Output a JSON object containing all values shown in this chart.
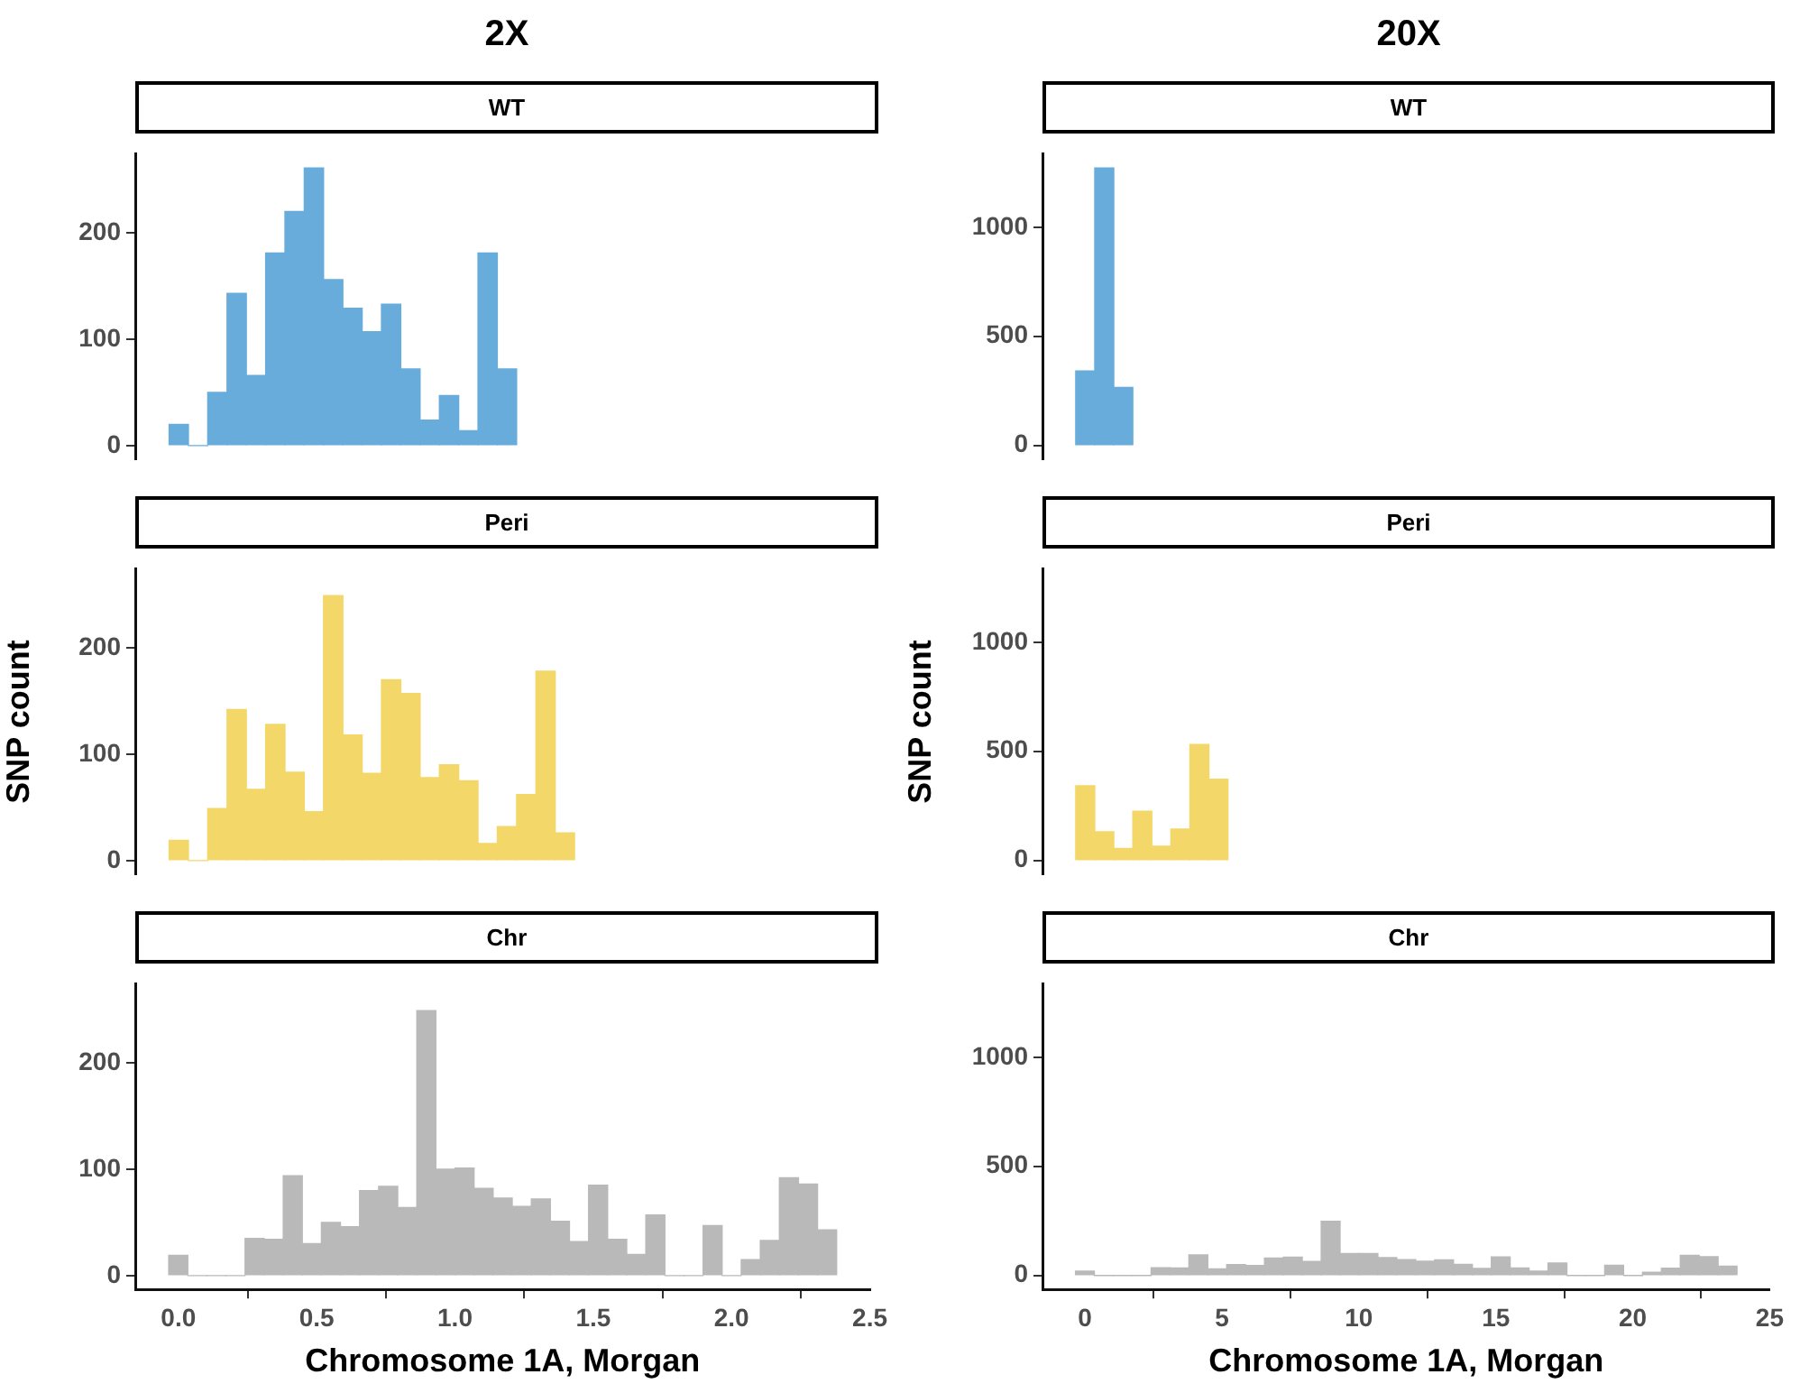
{
  "chart_data": [
    {
      "type": "histogram",
      "title": "2X",
      "subtitle": "WT",
      "color": "#68acdc",
      "bins": [
        -0.035,
        0.034,
        0.103,
        0.172,
        0.241,
        0.31,
        0.379,
        0.448,
        0.517,
        0.586,
        0.655,
        0.724,
        0.793,
        0.862,
        0.931,
        1.0,
        1.069,
        1.138,
        1.207
      ],
      "values": [
        20,
        0,
        50,
        143,
        66,
        181,
        220,
        261,
        156,
        129,
        107,
        133,
        72,
        24,
        47,
        14,
        181,
        72
      ],
      "xlim": [
        -0.156,
        2.5
      ],
      "ylim": [
        -13,
        274
      ],
      "yticks": [
        0,
        100,
        200
      ],
      "tick_labels": "y"
    },
    {
      "type": "histogram",
      "title": "20X",
      "subtitle": "WT",
      "color": "#68acdc",
      "bins": [
        -0.345,
        0.345,
        1.035,
        1.725
      ],
      "values": [
        341,
        1271,
        266
      ],
      "xlim": [
        -1.55,
        25
      ],
      "ylim": [
        -64,
        1335
      ],
      "yticks": [
        0,
        500,
        1000
      ],
      "tick_labels": "y"
    },
    {
      "type": "histogram",
      "subtitle": "Peri",
      "ylabel": "SNP count",
      "color": "#f3d768",
      "bins": [
        -0.035,
        0.034,
        0.103,
        0.172,
        0.241,
        0.31,
        0.379,
        0.448,
        0.517,
        0.586,
        0.655,
        0.724,
        0.793,
        0.862,
        0.931,
        1.0,
        1.069,
        1.138,
        1.207,
        1.276,
        1.345,
        1.414
      ],
      "values": [
        19,
        0,
        49,
        142,
        67,
        128,
        83,
        46,
        249,
        118,
        82,
        170,
        157,
        78,
        90,
        75,
        16,
        32,
        62,
        178,
        26
      ],
      "xlim": [
        -0.156,
        2.5
      ],
      "ylim": [
        -13,
        274
      ],
      "yticks": [
        0,
        100,
        200
      ],
      "tick_labels": "y"
    },
    {
      "type": "histogram",
      "subtitle": "Peri",
      "ylabel": "SNP count",
      "color": "#f3d768",
      "bins": [
        -0.345,
        0.345,
        1.035,
        1.725,
        2.415,
        3.105,
        3.795,
        4.485,
        5.175
      ],
      "values": [
        342,
        131,
        55,
        226,
        65,
        144,
        531,
        372
      ],
      "xlim": [
        -1.55,
        25
      ],
      "ylim": [
        -64,
        1335
      ],
      "yticks": [
        0,
        500,
        1000
      ],
      "tick_labels": "y"
    },
    {
      "type": "histogram",
      "subtitle": "Chr",
      "xlabel": "Chromosome 1A, Morgan",
      "color": "#b9b9b9",
      "bins": [
        -0.035,
        0.034,
        0.103,
        0.172,
        0.241,
        0.31,
        0.379,
        0.448,
        0.517,
        0.586,
        0.655,
        0.724,
        0.793,
        0.862,
        0.931,
        1.0,
        1.069,
        1.138,
        1.207,
        1.276,
        1.345,
        1.414,
        1.483,
        1.552,
        1.621,
        1.69,
        1.759,
        1.828,
        1.897,
        1.966,
        2.035,
        2.104,
        2.173,
        2.242,
        2.311,
        2.38
      ],
      "values": [
        19,
        0,
        0,
        0,
        35,
        34,
        94,
        30,
        50,
        46,
        80,
        84,
        64,
        249,
        100,
        101,
        82,
        73,
        65,
        72,
        51,
        32,
        85,
        34,
        20,
        57,
        0,
        0,
        47,
        0,
        15,
        33,
        92,
        86,
        43
      ],
      "xlim": [
        -0.156,
        2.5
      ],
      "ylim": [
        -13,
        274
      ],
      "xticks": [
        {
          "value": 0,
          "label": "0.0"
        },
        {
          "value": 0.5,
          "label": "0.5"
        },
        {
          "value": 1,
          "label": "1.0"
        },
        {
          "value": 1.5,
          "label": "1.5"
        },
        {
          "value": 2,
          "label": "2.0"
        },
        {
          "value": 2.5,
          "label": "2.5"
        }
      ],
      "yticks": [
        0,
        100,
        200
      ]
    },
    {
      "type": "histogram",
      "subtitle": "Chr",
      "xlabel": "Chromosome 1A, Morgan",
      "color": "#b9b9b9",
      "bins": [
        -0.345,
        0.345,
        1.035,
        1.725,
        2.415,
        3.105,
        3.795,
        4.485,
        5.175,
        5.865,
        6.555,
        7.245,
        7.935,
        8.625,
        9.315,
        10.005,
        10.695,
        11.385,
        12.075,
        12.765,
        13.455,
        14.145,
        14.835,
        15.525,
        16.215,
        16.905,
        17.595,
        18.285,
        18.975,
        19.665,
        20.355,
        21.045,
        21.735,
        22.425,
        23.115,
        23.805
      ],
      "values": [
        20,
        0,
        0,
        0,
        35,
        34,
        94,
        30,
        50,
        46,
        80,
        84,
        64,
        248,
        100,
        101,
        82,
        73,
        65,
        72,
        51,
        32,
        85,
        34,
        20,
        57,
        0,
        0,
        47,
        0,
        15,
        33,
        92,
        86,
        43
      ],
      "xlim": [
        -1.55,
        25
      ],
      "ylim": [
        -64,
        1335
      ],
      "xticks": [
        0,
        5,
        10,
        15,
        20,
        25
      ],
      "yticks": [
        0,
        500,
        1000
      ]
    }
  ]
}
